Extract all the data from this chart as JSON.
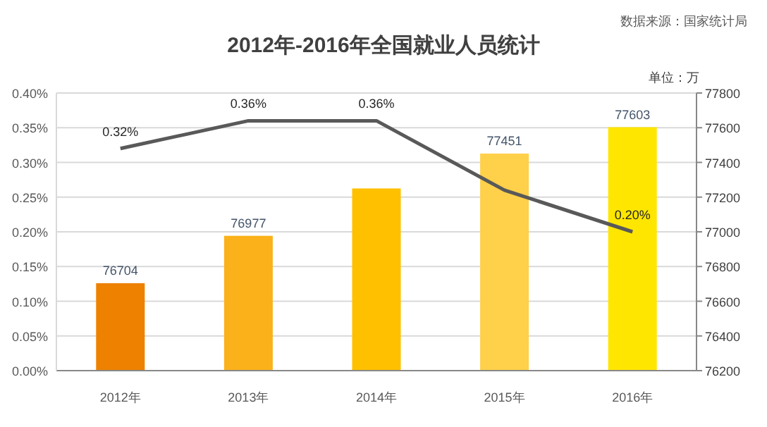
{
  "chart_data": {
    "type": "bar",
    "title": "2012年-2016年全国就业人员统计",
    "annotations": [
      "数据来源：国家统计局",
      "单位：万"
    ],
    "categories": [
      "2012年",
      "2013年",
      "2014年",
      "2015年",
      "2016年"
    ],
    "series": [
      {
        "axis": "y2",
        "colors": [
          "#ee8100",
          "#fbb11a",
          "#ffc000",
          "#ffd04a",
          "#ffe600"
        ],
        "values": [
          76704,
          76977,
          77250,
          77451,
          77603
        ],
        "value_labels": [
          "76704",
          "76977",
          null,
          "77451",
          "77603"
        ]
      },
      {
        "type": "line",
        "axis": "y",
        "color": "#595959",
        "values": [
          0.32,
          0.36,
          0.36,
          0.26,
          0.2
        ],
        "value_labels": [
          "0.32%",
          "0.36%",
          "0.36%",
          null,
          "0.20%"
        ],
        "marker": "none",
        "line_style": "solid"
      }
    ],
    "ylim": [
      0,
      0.4
    ],
    "yticks": [
      {
        "value": 0,
        "label": "0.00%"
      },
      {
        "value": 0.05,
        "label": "0.05%"
      },
      {
        "value": 0.1,
        "label": "0.10%"
      },
      {
        "value": 0.15,
        "label": "0.15%"
      },
      {
        "value": 0.2,
        "label": "0.20%"
      },
      {
        "value": 0.25,
        "label": "0.25%"
      },
      {
        "value": 0.3,
        "label": "0.30%"
      },
      {
        "value": 0.35,
        "label": "0.35%"
      },
      {
        "value": 0.4,
        "label": "0.40%"
      }
    ],
    "y2lim": [
      76200,
      77800
    ],
    "y2ticks": [
      76200,
      76400,
      76600,
      76800,
      77000,
      77200,
      77400,
      77600,
      77800
    ],
    "grid": "y"
  }
}
